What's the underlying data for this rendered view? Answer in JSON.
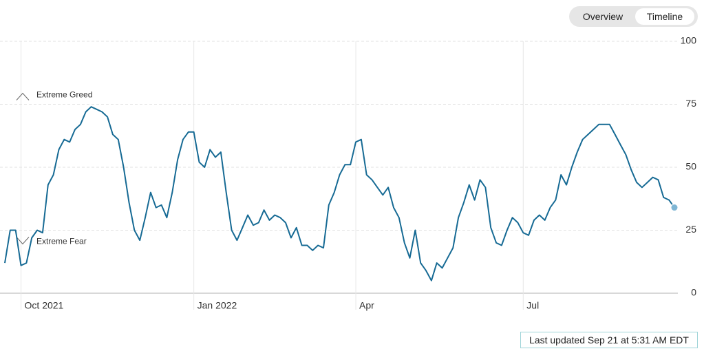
{
  "tabs": [
    "Overview",
    "Timeline"
  ],
  "chart_data": {
    "type": "line",
    "annotations": [
      "Extreme Greed",
      "Extreme Fear"
    ],
    "categories": [
      null,
      null,
      null,
      "Oct 2021",
      null,
      null,
      null,
      null,
      null,
      null,
      null,
      null,
      null,
      null,
      null,
      null,
      null,
      null,
      null,
      null,
      null,
      null,
      null,
      null,
      null,
      null,
      null,
      null,
      null,
      null,
      null,
      null,
      null,
      null,
      null,
      "Jan 2022",
      null,
      null,
      null,
      null,
      null,
      null,
      null,
      null,
      null,
      null,
      null,
      null,
      null,
      null,
      null,
      null,
      null,
      null,
      null,
      null,
      null,
      null,
      null,
      null,
      null,
      null,
      null,
      null,
      null,
      "Apr",
      null,
      null,
      null,
      null,
      null,
      null,
      null,
      null,
      null,
      null,
      null,
      null,
      null,
      null,
      null,
      null,
      null,
      null,
      null,
      null,
      null,
      null,
      null,
      null,
      null,
      null,
      null,
      null,
      null,
      null,
      "Jul",
      null,
      null,
      null,
      null,
      null,
      null,
      null,
      null,
      null,
      null,
      null,
      null,
      null,
      null,
      null,
      null,
      null,
      null,
      null,
      null,
      null,
      null,
      null,
      null,
      null,
      null,
      null,
      null
    ],
    "values": [
      12,
      25,
      25,
      11,
      12,
      22,
      25,
      24,
      43,
      47,
      57,
      61,
      60,
      65,
      67,
      72,
      74,
      73,
      72,
      70,
      63,
      61,
      50,
      36,
      25,
      21,
      30,
      40,
      34,
      35,
      30,
      40,
      53,
      61,
      64,
      64,
      52,
      50,
      57,
      54,
      56,
      40,
      25,
      21,
      26,
      31,
      27,
      28,
      33,
      29,
      31,
      30,
      28,
      22,
      26,
      19,
      19,
      17,
      19,
      18,
      35,
      40,
      47,
      51,
      51,
      60,
      61,
      47,
      45,
      42,
      39,
      42,
      34,
      30,
      20,
      14,
      25,
      12,
      9,
      5,
      12,
      10,
      14,
      18,
      30,
      36,
      43,
      37,
      45,
      42,
      26,
      20,
      19,
      25,
      30,
      28,
      24,
      23,
      29,
      31,
      29,
      34,
      37,
      47,
      43,
      50,
      56,
      61,
      63,
      65,
      67,
      67,
      67,
      63,
      59,
      55,
      49,
      44,
      42,
      44,
      46,
      45,
      38,
      37,
      34
    ],
    "color": "#166a94",
    "ylim": [
      0,
      100
    ],
    "yticks": [
      0,
      25,
      50,
      75,
      100
    ],
    "grid": true
  },
  "last_updated": "Last updated Sep 21 at 5:31 AM EDT"
}
